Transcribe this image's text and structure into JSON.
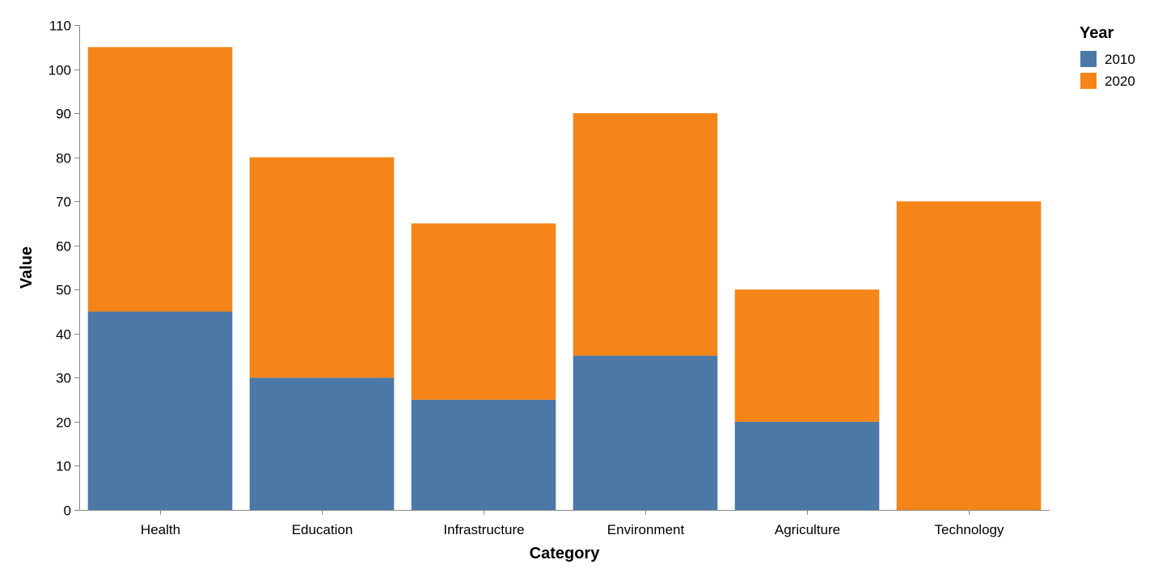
{
  "chart_data": {
    "type": "bar",
    "stacked": true,
    "categories": [
      "Health",
      "Education",
      "Infrastructure",
      "Environment",
      "Agriculture",
      "Technology"
    ],
    "series": [
      {
        "name": "2010",
        "color": "#4c78a8",
        "values": [
          45,
          30,
          25,
          35,
          20,
          0
        ]
      },
      {
        "name": "2020",
        "color": "#f58518",
        "values": [
          60,
          50,
          40,
          55,
          30,
          70
        ]
      }
    ],
    "xlabel": "Category",
    "ylabel": "Value",
    "ylim": [
      0,
      110
    ],
    "yticks": [
      0,
      10,
      20,
      30,
      40,
      50,
      60,
      70,
      80,
      90,
      100,
      110
    ],
    "grid": false,
    "legend": {
      "title": "Year",
      "placement": "top-right"
    }
  }
}
